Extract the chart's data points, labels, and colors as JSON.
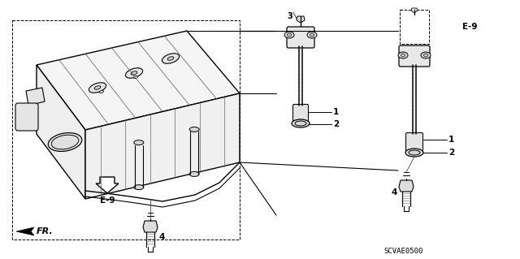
{
  "bg_color": "#ffffff",
  "line_color": "#000000",
  "part_code": "SCVAE0500",
  "labels": {
    "fr": "FR.",
    "e9_main": "E-9",
    "e9_right": "E-9",
    "part1": "1",
    "part2": "2",
    "part3": "3",
    "part4_center": "4",
    "part4_right": "4",
    "part1b": "1",
    "part2b": "2"
  }
}
